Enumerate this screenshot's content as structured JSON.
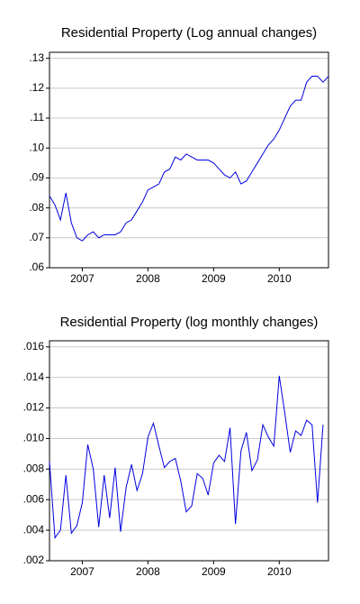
{
  "chart_data": [
    {
      "type": "line",
      "title": "Residential Property (Log annual changes)",
      "color": "#0000e0",
      "grid": true,
      "xlim": [
        2007,
        2011.25
      ],
      "xticks": [
        {
          "value": 2007.5,
          "label": "2007"
        },
        {
          "value": 2008.5,
          "label": "2008"
        },
        {
          "value": 2009.5,
          "label": "2009"
        },
        {
          "value": 2010.5,
          "label": "2010"
        }
      ],
      "ylim": [
        0.06,
        0.132
      ],
      "yticks": [
        {
          "value": 0.06,
          "label": ".06"
        },
        {
          "value": 0.07,
          "label": ".07"
        },
        {
          "value": 0.08,
          "label": ".08"
        },
        {
          "value": 0.09,
          "label": ".09"
        },
        {
          "value": 0.1,
          "label": ".10"
        },
        {
          "value": 0.11,
          "label": ".11"
        },
        {
          "value": 0.12,
          "label": ".12"
        },
        {
          "value": 0.13,
          "label": ".13"
        }
      ],
      "x": [
        2007,
        2007.083,
        2007.167,
        2007.25,
        2007.333,
        2007.417,
        2007.5,
        2007.583,
        2007.667,
        2007.75,
        2007.833,
        2007.917,
        2008,
        2008.083,
        2008.167,
        2008.25,
        2008.333,
        2008.417,
        2008.5,
        2008.583,
        2008.667,
        2008.75,
        2008.833,
        2008.917,
        2009,
        2009.083,
        2009.167,
        2009.25,
        2009.333,
        2009.417,
        2009.5,
        2009.583,
        2009.667,
        2009.75,
        2009.833,
        2009.917,
        2010,
        2010.083,
        2010.167,
        2010.25,
        2010.333,
        2010.417,
        2010.5,
        2010.583,
        2010.667,
        2010.75,
        2010.833,
        2010.917,
        2011,
        2011.083,
        2011.167,
        2011.25
      ],
      "values": [
        0.084,
        0.081,
        0.076,
        0.085,
        0.075,
        0.07,
        0.069,
        0.071,
        0.072,
        0.07,
        0.071,
        0.071,
        0.071,
        0.072,
        0.075,
        0.076,
        0.079,
        0.082,
        0.086,
        0.087,
        0.088,
        0.092,
        0.093,
        0.097,
        0.096,
        0.098,
        0.097,
        0.096,
        0.096,
        0.096,
        0.095,
        0.093,
        0.091,
        0.09,
        0.092,
        0.088,
        0.089,
        0.092,
        0.095,
        0.098,
        0.101,
        0.103,
        0.106,
        0.11,
        0.114,
        0.116,
        0.116,
        0.122,
        0.124,
        0.124,
        0.122,
        0.124
      ]
    },
    {
      "type": "line",
      "title": "Residential Property (log monthly changes)",
      "color": "#0000e0",
      "grid": true,
      "xlim": [
        2007,
        2011.25
      ],
      "xticks": [
        {
          "value": 2007.5,
          "label": "2007"
        },
        {
          "value": 2008.5,
          "label": "2008"
        },
        {
          "value": 2009.5,
          "label": "2009"
        },
        {
          "value": 2010.5,
          "label": "2010"
        }
      ],
      "ylim": [
        0.002,
        0.0164
      ],
      "yticks": [
        {
          "value": 0.002,
          "label": ".002"
        },
        {
          "value": 0.004,
          "label": ".004"
        },
        {
          "value": 0.006,
          "label": ".006"
        },
        {
          "value": 0.008,
          "label": ".008"
        },
        {
          "value": 0.01,
          "label": ".010"
        },
        {
          "value": 0.012,
          "label": ".012"
        },
        {
          "value": 0.014,
          "label": ".014"
        },
        {
          "value": 0.016,
          "label": ".016"
        }
      ],
      "x": [
        2007,
        2007.083,
        2007.167,
        2007.25,
        2007.333,
        2007.417,
        2007.5,
        2007.583,
        2007.667,
        2007.75,
        2007.833,
        2007.917,
        2008,
        2008.083,
        2008.167,
        2008.25,
        2008.333,
        2008.417,
        2008.5,
        2008.583,
        2008.667,
        2008.75,
        2008.833,
        2008.917,
        2009,
        2009.083,
        2009.167,
        2009.25,
        2009.333,
        2009.417,
        2009.5,
        2009.583,
        2009.667,
        2009.75,
        2009.833,
        2009.917,
        2010,
        2010.083,
        2010.167,
        2010.25,
        2010.333,
        2010.417,
        2010.5,
        2010.583,
        2010.667,
        2010.75,
        2010.833,
        2010.917,
        2011,
        2011.083,
        2011.167
      ],
      "values": [
        0.0085,
        0.0035,
        0.004,
        0.0076,
        0.0038,
        0.0043,
        0.0058,
        0.0096,
        0.008,
        0.0042,
        0.0076,
        0.0048,
        0.0081,
        0.0039,
        0.0068,
        0.0083,
        0.0066,
        0.0077,
        0.0101,
        0.011,
        0.0095,
        0.0081,
        0.0085,
        0.0087,
        0.0072,
        0.0052,
        0.0056,
        0.0077,
        0.0074,
        0.0063,
        0.0084,
        0.0089,
        0.0085,
        0.0107,
        0.0044,
        0.0092,
        0.0104,
        0.0079,
        0.0086,
        0.0109,
        0.0101,
        0.0095,
        0.0141,
        0.0117,
        0.0091,
        0.0105,
        0.0102,
        0.0112,
        0.0109,
        0.0058,
        0.0109
      ]
    }
  ]
}
